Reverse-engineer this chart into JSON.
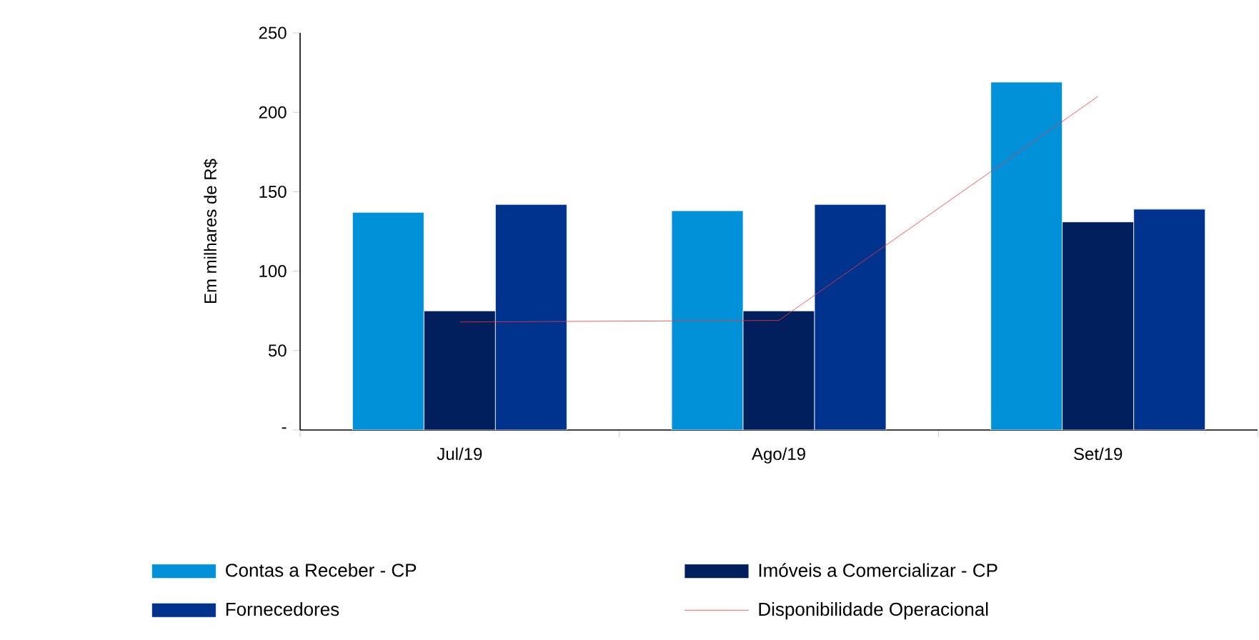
{
  "chart_data": {
    "type": "bar",
    "ylabel": "Em milhares de R$",
    "categories": [
      "Jul/19",
      "Ago/19",
      "Set/19"
    ],
    "series": [
      {
        "name": "Contas a Receber  - CP",
        "color": "#0091d9",
        "values": [
          137,
          138,
          219
        ]
      },
      {
        "name": "Imóveis a Comercializar - CP",
        "color": "#001f5c",
        "values": [
          75,
          75,
          131
        ]
      },
      {
        "name": "Fornecedores",
        "color": "#00338d",
        "values": [
          142,
          142,
          139
        ]
      },
      {
        "name": "Disponibilidade Operacional",
        "type": "line",
        "color": "#ff3333",
        "values": [
          68,
          69,
          210
        ]
      }
    ],
    "ylim": [
      0,
      250
    ],
    "yticks": [
      {
        "value": 0,
        "label": "-"
      },
      50,
      100,
      150,
      200,
      250
    ],
    "legend": "bottom",
    "grid": false,
    "marker": "none"
  }
}
